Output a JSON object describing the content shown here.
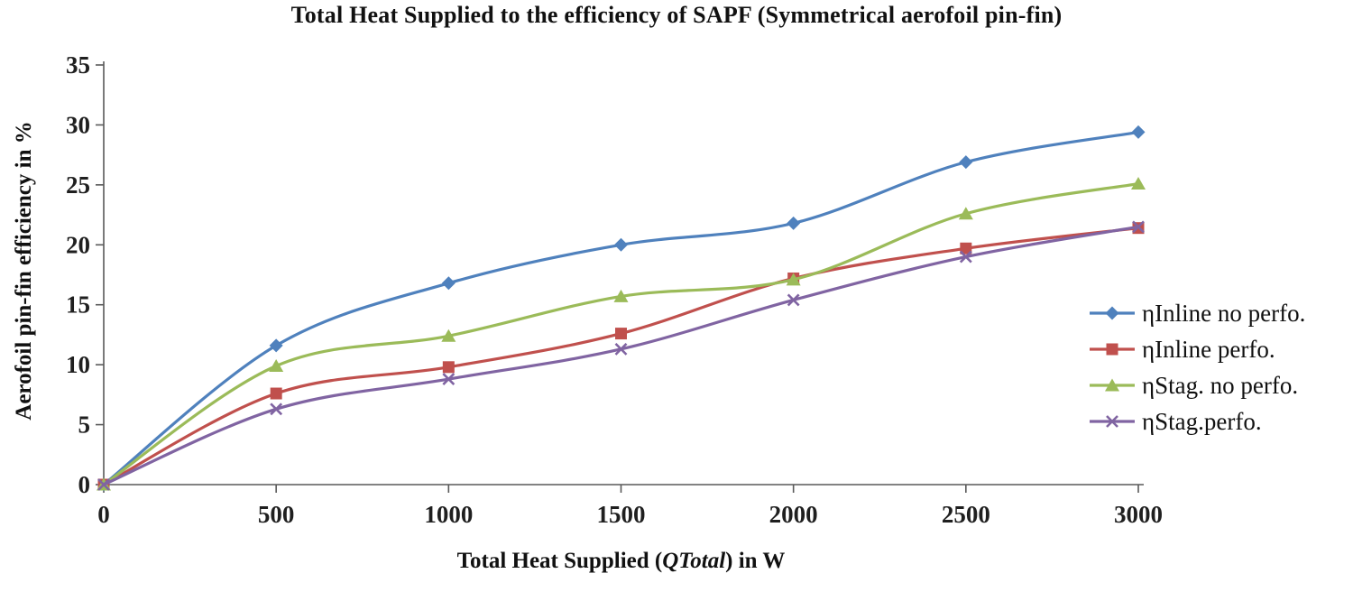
{
  "chart_data": {
    "type": "line",
    "title": "Total Heat Supplied to the efficiency of SAPF (Symmetrical aerofoil pin-fin)",
    "xlabel": "Total Heat Supplied (QTotal) in W",
    "xlabel_parts": {
      "pre": "Total Heat Supplied (",
      "italic": "QTotal",
      "post": ") in W"
    },
    "ylabel": "Aerofoil pin-fin efficiency in %",
    "x": [
      0,
      500,
      1000,
      1500,
      2000,
      2500,
      3000
    ],
    "xlim": [
      0,
      3000
    ],
    "xtick_step": 500,
    "ylim": [
      0,
      35
    ],
    "ytick_step": 5,
    "grid": false,
    "legend_position": "right",
    "axis_color": "#595959",
    "series": [
      {
        "name": "ηInline no perfo.",
        "color": "#4F81BD",
        "marker": "diamond",
        "values": [
          0,
          11.6,
          16.8,
          20.0,
          21.8,
          26.9,
          29.4
        ]
      },
      {
        "name": "ηInline perfo.",
        "color": "#C0504D",
        "marker": "square",
        "values": [
          0,
          7.6,
          9.8,
          12.6,
          17.2,
          19.7,
          21.4
        ]
      },
      {
        "name": "ηStag. no perfo.",
        "color": "#9BBB59",
        "marker": "triangle",
        "values": [
          0,
          9.9,
          12.4,
          15.7,
          17.1,
          22.6,
          25.1
        ]
      },
      {
        "name": "ηStag.perfo.",
        "color": "#8064A2",
        "marker": "x",
        "values": [
          0,
          6.3,
          8.8,
          11.3,
          15.4,
          19.0,
          21.5
        ]
      }
    ]
  }
}
